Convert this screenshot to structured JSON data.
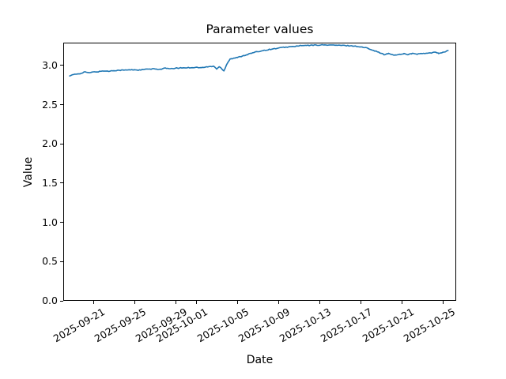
{
  "chart_data": {
    "type": "line",
    "title": "Parameter values",
    "xlabel": "Date",
    "ylabel": "Value",
    "line_color": "#1f77b4",
    "grid": false,
    "legend": null,
    "xlim": [
      "2025-09-18T02:00Z",
      "2025-10-26T07:00Z"
    ],
    "ylim": [
      0,
      3.29
    ],
    "x_ticks": [
      "2025-09-21",
      "2025-09-25",
      "2025-09-29",
      "2025-10-01",
      "2025-10-05",
      "2025-10-09",
      "2025-10-13",
      "2025-10-17",
      "2025-10-21",
      "2025-10-25"
    ],
    "x_tick_rotation_deg": 30,
    "y_ticks": [
      0.0,
      0.5,
      1.0,
      1.5,
      2.0,
      2.5,
      3.0
    ],
    "noise_amplitude": 0.005,
    "points": [
      [
        "2025-09-18T17:00Z",
        2.87
      ],
      [
        "2025-09-19T05:00Z",
        2.885
      ],
      [
        "2025-09-19T17:00Z",
        2.895
      ],
      [
        "2025-09-20T05:00Z",
        2.92
      ],
      [
        "2025-09-20T12:00Z",
        2.905
      ],
      [
        "2025-09-21T00:00Z",
        2.915
      ],
      [
        "2025-09-21T12:00Z",
        2.92
      ],
      [
        "2025-09-22T00:00Z",
        2.93
      ],
      [
        "2025-09-22T12:00Z",
        2.925
      ],
      [
        "2025-09-23T00:00Z",
        2.935
      ],
      [
        "2025-09-24T00:00Z",
        2.94
      ],
      [
        "2025-09-25T00:00Z",
        2.945
      ],
      [
        "2025-09-25T12:00Z",
        2.94
      ],
      [
        "2025-09-26T00:00Z",
        2.95
      ],
      [
        "2025-09-27T00:00Z",
        2.955
      ],
      [
        "2025-09-27T12:00Z",
        2.95
      ],
      [
        "2025-09-28T00:00Z",
        2.965
      ],
      [
        "2025-09-28T12:00Z",
        2.955
      ],
      [
        "2025-09-29T00:00Z",
        2.965
      ],
      [
        "2025-09-30T00:00Z",
        2.97
      ],
      [
        "2025-10-01T00:00Z",
        2.975
      ],
      [
        "2025-10-01T12:00Z",
        2.97
      ],
      [
        "2025-10-02T00:00Z",
        2.98
      ],
      [
        "2025-10-02T17:00Z",
        2.99
      ],
      [
        "2025-10-03T00:00Z",
        2.955
      ],
      [
        "2025-10-03T07:00Z",
        2.985
      ],
      [
        "2025-10-03T17:00Z",
        2.93
      ],
      [
        "2025-10-04T00:00Z",
        3.02
      ],
      [
        "2025-10-04T07:00Z",
        3.08
      ],
      [
        "2025-10-05T00:00Z",
        3.1
      ],
      [
        "2025-10-05T12:00Z",
        3.12
      ],
      [
        "2025-10-06T00:00Z",
        3.14
      ],
      [
        "2025-10-06T12:00Z",
        3.16
      ],
      [
        "2025-10-07T00:00Z",
        3.175
      ],
      [
        "2025-10-07T12:00Z",
        3.19
      ],
      [
        "2025-10-08T00:00Z",
        3.2
      ],
      [
        "2025-10-08T12:00Z",
        3.21
      ],
      [
        "2025-10-09T00:00Z",
        3.22
      ],
      [
        "2025-10-09T12:00Z",
        3.23
      ],
      [
        "2025-10-10T00:00Z",
        3.235
      ],
      [
        "2025-10-10T12:00Z",
        3.24
      ],
      [
        "2025-10-11T00:00Z",
        3.25
      ],
      [
        "2025-10-12T00:00Z",
        3.255
      ],
      [
        "2025-10-13T00:00Z",
        3.26
      ],
      [
        "2025-10-14T00:00Z",
        3.26
      ],
      [
        "2025-10-15T00:00Z",
        3.255
      ],
      [
        "2025-10-16T00:00Z",
        3.25
      ],
      [
        "2025-10-16T12:00Z",
        3.245
      ],
      [
        "2025-10-17T00:00Z",
        3.235
      ],
      [
        "2025-10-17T12:00Z",
        3.225
      ],
      [
        "2025-10-18T00:00Z",
        3.205
      ],
      [
        "2025-10-18T12:00Z",
        3.18
      ],
      [
        "2025-10-19T00:00Z",
        3.155
      ],
      [
        "2025-10-19T07:00Z",
        3.135
      ],
      [
        "2025-10-19T17:00Z",
        3.15
      ],
      [
        "2025-10-20T00:00Z",
        3.14
      ],
      [
        "2025-10-20T10:00Z",
        3.13
      ],
      [
        "2025-10-20T19:00Z",
        3.14
      ],
      [
        "2025-10-21T05:00Z",
        3.15
      ],
      [
        "2025-10-21T14:00Z",
        3.14
      ],
      [
        "2025-10-22T00:00Z",
        3.15
      ],
      [
        "2025-10-22T12:00Z",
        3.145
      ],
      [
        "2025-10-23T00:00Z",
        3.15
      ],
      [
        "2025-10-23T12:00Z",
        3.155
      ],
      [
        "2025-10-24T00:00Z",
        3.16
      ],
      [
        "2025-10-24T07:00Z",
        3.17
      ],
      [
        "2025-10-24T14:00Z",
        3.155
      ],
      [
        "2025-10-25T00:00Z",
        3.165
      ],
      [
        "2025-10-25T12:00Z",
        3.19
      ]
    ]
  }
}
